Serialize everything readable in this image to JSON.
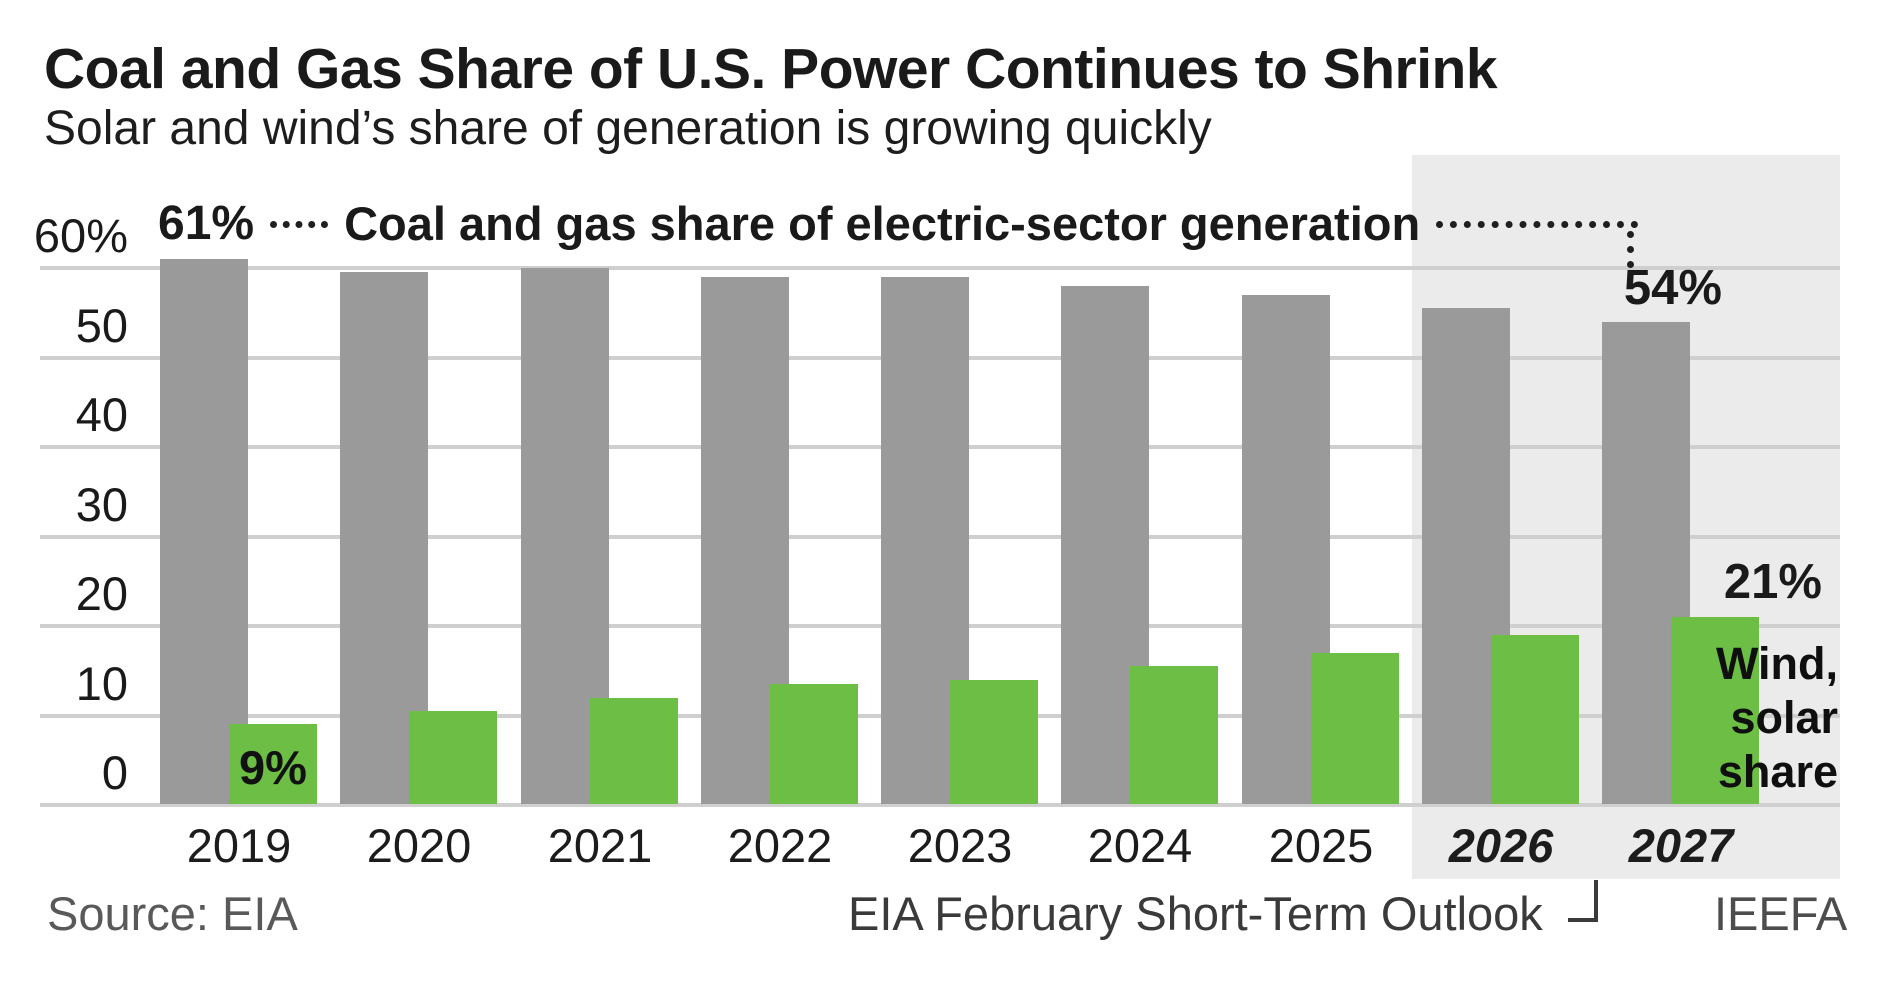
{
  "title": "Coal and Gas Share of U.S. Power Continues to Shrink",
  "subtitle": "Solar and wind’s share of generation is growing quickly",
  "annotation": {
    "start_value": "61%",
    "series_label": "Coal and gas share of electric-sector generation",
    "end_value": "54%"
  },
  "bar_labels": {
    "green_first": "9%",
    "green_last": "21%"
  },
  "green_caption_lines": [
    "Wind,",
    "solar",
    "share"
  ],
  "footer": {
    "source": "Source: EIA",
    "note": "EIA February Short-Term Outlook",
    "brand": "IEEFA"
  },
  "colors": {
    "coal_gas_bar": "#9a9a9a",
    "wind_solar_bar": "#6cbe45",
    "forecast_band": "#ebebeb",
    "gridline": "#cfcfcf",
    "text_dark": "#1a1a1a",
    "text_gray": "#595959"
  },
  "chart_data": {
    "type": "bar",
    "title": "Coal and Gas Share of U.S. Power Continues to Shrink",
    "subtitle": "Solar and wind’s share of generation is growing quickly",
    "categories": [
      "2019",
      "2020",
      "2021",
      "2022",
      "2023",
      "2024",
      "2025",
      "2026",
      "2027"
    ],
    "series": [
      {
        "name": "Coal and gas share of electric-sector generation",
        "color": "#9a9a9a",
        "values": [
          61,
          59.5,
          60,
          59,
          59,
          58,
          57,
          55.5,
          54
        ]
      },
      {
        "name": "Wind, solar share",
        "color": "#6cbe45",
        "values": [
          9,
          10.5,
          12,
          13.5,
          14,
          15.5,
          17,
          19,
          21
        ]
      }
    ],
    "ylim": [
      0,
      60
    ],
    "yticks": [
      {
        "value": 60,
        "label": "60%"
      },
      {
        "value": 50,
        "label": "50"
      },
      {
        "value": 40,
        "label": "40"
      },
      {
        "value": 30,
        "label": "30"
      },
      {
        "value": 20,
        "label": "20"
      },
      {
        "value": 10,
        "label": "10"
      },
      {
        "value": 0,
        "label": "0"
      }
    ],
    "grid": "horizontal",
    "legend_position": "none",
    "forecast_categories": [
      "2026",
      "2027"
    ],
    "forecast_band_color": "#ebebeb",
    "annotated_points": [
      {
        "category": "2019",
        "series": "Coal and gas share of electric-sector generation",
        "label": "61%"
      },
      {
        "category": "2027",
        "series": "Coal and gas share of electric-sector generation",
        "label": "54%"
      },
      {
        "category": "2019",
        "series": "Wind, solar share",
        "label": "9%"
      },
      {
        "category": "2027",
        "series": "Wind, solar share",
        "label": "21%"
      }
    ]
  }
}
